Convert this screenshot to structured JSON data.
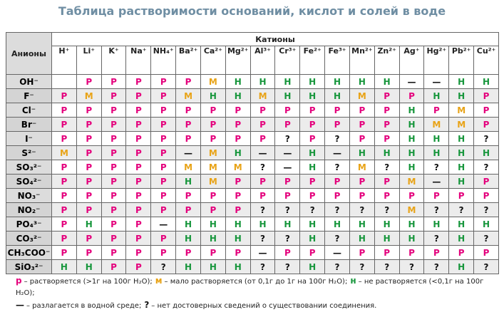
{
  "header": {
    "title": "Таблица растворимости оснований, кислот и солей в воде"
  },
  "table": {
    "anion_header": "Анионы",
    "cation_header": "Катионы",
    "cations": [
      "H⁺",
      "Li⁺",
      "K⁺",
      "Na⁺",
      "NH₄⁺",
      "Ba²⁺",
      "Ca²⁺",
      "Mg²⁺",
      "Al³⁺",
      "Cr³⁺",
      "Fe²⁺",
      "Fe³⁺",
      "Mn²⁺",
      "Zn²⁺",
      "Ag⁺",
      "Hg²⁺",
      "Pb²⁺",
      "Cu²⁺"
    ],
    "colors": {
      "Р": "#e4007c",
      "М": "#e8a317",
      "Н": "#17963c",
      "—": "#111111",
      "?": "#111111"
    },
    "rows": [
      {
        "anion": "OH⁻",
        "cells": [
          null,
          "Р",
          "Р",
          "Р",
          "Р",
          "Р",
          "М",
          "Н",
          "Н",
          "Н",
          "Н",
          "Н",
          "Н",
          "Н",
          "—",
          "—",
          "Н",
          "Н"
        ]
      },
      {
        "anion": "F⁻",
        "cells": [
          "Р",
          "М",
          "Р",
          "Р",
          "Р",
          "М",
          "Н",
          "Н",
          "М",
          "Н",
          "Н",
          "Н",
          "М",
          "Р",
          "Р",
          "Н",
          "Н",
          "Р"
        ]
      },
      {
        "anion": "Cl⁻",
        "cells": [
          "Р",
          "Р",
          "Р",
          "Р",
          "Р",
          "Р",
          "Р",
          "Р",
          "Р",
          "Р",
          "Р",
          "Р",
          "Р",
          "Р",
          "Н",
          "Р",
          "М",
          "Р"
        ]
      },
      {
        "anion": "Br⁻",
        "cells": [
          "Р",
          "Р",
          "Р",
          "Р",
          "Р",
          "Р",
          "Р",
          "Р",
          "Р",
          "Р",
          "Р",
          "Р",
          "Р",
          "Р",
          "Н",
          "М",
          "М",
          "Р"
        ]
      },
      {
        "anion": "I⁻",
        "cells": [
          "Р",
          "Р",
          "Р",
          "Р",
          "Р",
          "Р",
          "Р",
          "Р",
          "Р",
          "?",
          "Р",
          "?",
          "Р",
          "Р",
          "Н",
          "Н",
          "Н",
          "?"
        ]
      },
      {
        "anion": "S²⁻",
        "cells": [
          "М",
          "Р",
          "Р",
          "Р",
          "Р",
          "—",
          "М",
          "Н",
          "—",
          "—",
          "Н",
          "—",
          "Н",
          "Н",
          "Н",
          "Н",
          "Н",
          "Н"
        ]
      },
      {
        "anion": "SO₃²⁻",
        "cells": [
          "Р",
          "Р",
          "Р",
          "Р",
          "Р",
          "М",
          "М",
          "М",
          "?",
          "—",
          "Н",
          "?",
          "М",
          "?",
          "Н",
          "?",
          "Н",
          "?"
        ]
      },
      {
        "anion": "SO₄²⁻",
        "cells": [
          "Р",
          "Р",
          "Р",
          "Р",
          "Р",
          "Н",
          "М",
          "Р",
          "Р",
          "Р",
          "Р",
          "Р",
          "Р",
          "Р",
          "М",
          "—",
          "Н",
          "Р"
        ]
      },
      {
        "anion": "NO₃⁻",
        "cells": [
          "Р",
          "Р",
          "Р",
          "Р",
          "Р",
          "Р",
          "Р",
          "Р",
          "Р",
          "Р",
          "Р",
          "Р",
          "Р",
          "Р",
          "Р",
          "Р",
          "Р",
          "Р"
        ]
      },
      {
        "anion": "NO₂⁻",
        "cells": [
          "Р",
          "Р",
          "Р",
          "Р",
          "Р",
          "Р",
          "Р",
          "Р",
          "?",
          "?",
          "?",
          "?",
          "?",
          "?",
          "М",
          "?",
          "?",
          "?"
        ]
      },
      {
        "anion": "PO₄³⁻",
        "cells": [
          "Р",
          "Н",
          "Р",
          "Р",
          "—",
          "Н",
          "Н",
          "Н",
          "Н",
          "Н",
          "Н",
          "Н",
          "Н",
          "Н",
          "Н",
          "Н",
          "Н",
          "Н"
        ]
      },
      {
        "anion": "CO₃²⁻",
        "cells": [
          "Р",
          "Р",
          "Р",
          "Р",
          "Р",
          "Н",
          "Н",
          "Н",
          "?",
          "?",
          "Н",
          "?",
          "Н",
          "Н",
          "Н",
          "?",
          "Н",
          "?"
        ]
      },
      {
        "anion": "CH₃COO⁻",
        "cells": [
          "Р",
          "Р",
          "Р",
          "Р",
          "Р",
          "Р",
          "Р",
          "Р",
          "—",
          "Р",
          "Р",
          "—",
          "Р",
          "Р",
          "Р",
          "Р",
          "Р",
          "Р"
        ]
      },
      {
        "anion": "SiO₃²⁻",
        "cells": [
          "Н",
          "Н",
          "Р",
          "Р",
          "?",
          "Н",
          "Н",
          "Н",
          "?",
          "?",
          "Н",
          "?",
          "?",
          "?",
          "?",
          "?",
          "Н",
          "?"
        ]
      }
    ]
  },
  "legend": {
    "lines": [
      [
        {
          "symbol": "р",
          "color": "#e4007c",
          "text": "– растворяется (>1г на 100г H₂O);"
        },
        {
          "symbol": "м",
          "color": "#e8a317",
          "text": "– мало растворяется (от 0,1г до 1г на 100г H₂O);"
        },
        {
          "symbol": "н",
          "color": "#17963c",
          "text": "– не растворяется (<0,1г на 100г H₂O);"
        }
      ],
      [
        {
          "symbol": "—",
          "color": "#111111",
          "text": "– разлагается в водной среде;"
        },
        {
          "symbol": "?",
          "color": "#111111",
          "text": "– нет достоверных сведений о существовании соединения."
        }
      ]
    ]
  }
}
